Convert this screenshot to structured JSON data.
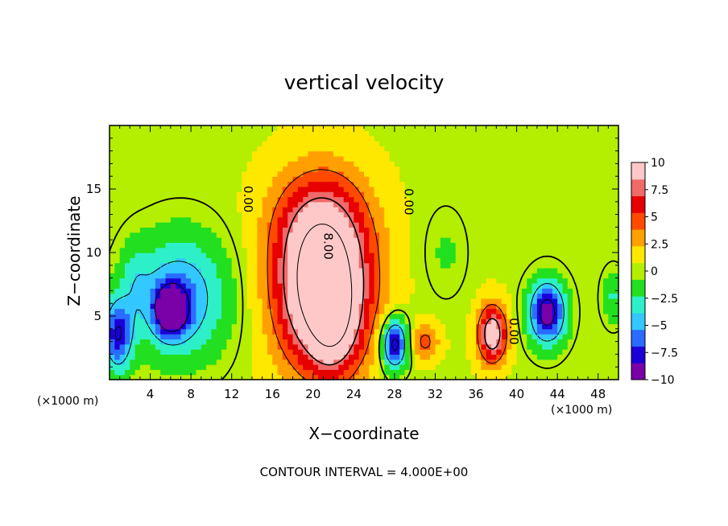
{
  "chart_data": {
    "type": "heatmap",
    "title": "vertical velocity",
    "xlabel": "X−coordinate",
    "ylabel": "Z−coordinate",
    "x_unit_label": "(×1000 m)",
    "footnote": "CONTOUR INTERVAL = 4.000E+00",
    "xlim": [
      0,
      50
    ],
    "ylim": [
      0,
      20
    ],
    "x_ticks": [
      4,
      8,
      12,
      16,
      20,
      24,
      28,
      32,
      36,
      40,
      44,
      48
    ],
    "y_ticks": [
      5,
      10,
      15
    ],
    "colorbar": {
      "min": -10,
      "max": 10,
      "tick_values": [
        10,
        7.5,
        5,
        2.5,
        0,
        -2.5,
        -5,
        -7.5,
        -10
      ],
      "tick_labels": [
        "10",
        "7.5",
        "5",
        "2.5",
        "0",
        "−2.5",
        "−5",
        "−7.5",
        "−10"
      ],
      "colors": [
        "#7a00a8",
        "#1a00d6",
        "#2a6cff",
        "#33c8ff",
        "#2ef0c8",
        "#22e020",
        "#b4ee00",
        "#ffe800",
        "#ffa000",
        "#ff4a00",
        "#e60000",
        "#f06a6a",
        "#ffc8c8"
      ]
    },
    "contour_labels": [
      {
        "x": 13.2,
        "y": 14.2,
        "text": "0.00"
      },
      {
        "x": 21.1,
        "y": 10.5,
        "text": "8.00"
      },
      {
        "x": 29.0,
        "y": 14.0,
        "text": "0.00"
      },
      {
        "x": 39.3,
        "y": 3.8,
        "text": "0.00"
      }
    ],
    "features": [
      {
        "kind": "updraft",
        "x": 21.0,
        "z": 7.5,
        "peak": 14
      },
      {
        "kind": "updraft",
        "x": 37.6,
        "z": 3.6,
        "peak": 9
      },
      {
        "kind": "updraft",
        "x": 31.0,
        "z": 3.0,
        "peak": 4
      },
      {
        "kind": "downdraft",
        "x": 6.0,
        "z": 5.5,
        "peak": -12
      },
      {
        "kind": "downdraft",
        "x": 28.0,
        "z": 2.8,
        "peak": -9
      },
      {
        "kind": "downdraft",
        "x": 43.0,
        "z": 5.3,
        "peak": -9
      },
      {
        "kind": "downdraft",
        "x": 0.8,
        "z": 3.5,
        "peak": -8
      }
    ]
  }
}
